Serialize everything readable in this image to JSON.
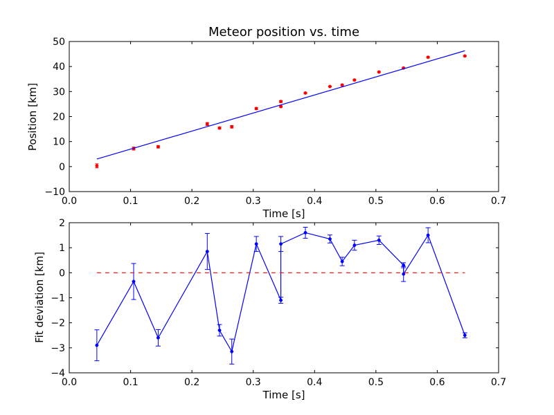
{
  "chart_data": [
    {
      "type": "scatter",
      "title": "Meteor position vs. time",
      "xlabel": "Time [s]",
      "ylabel": "Position [km]",
      "xlim": [
        0.0,
        0.7
      ],
      "ylim": [
        -10,
        50
      ],
      "xticks": [
        "0.0",
        "0.1",
        "0.2",
        "0.3",
        "0.4",
        "0.5",
        "0.6",
        "0.7"
      ],
      "yticks": [
        "−10",
        "0",
        "10",
        "20",
        "30",
        "40",
        "50"
      ],
      "grid": false,
      "series": [
        {
          "kind": "points_with_errorbars",
          "color": "#ff0000",
          "x": [
            0.045,
            0.105,
            0.145,
            0.225,
            0.245,
            0.265,
            0.305,
            0.345,
            0.345,
            0.385,
            0.425,
            0.445,
            0.465,
            0.505,
            0.545,
            0.585,
            0.645
          ],
          "y": [
            0.3,
            7.2,
            7.9,
            17.0,
            15.4,
            15.9,
            23.2,
            24.0,
            26.0,
            29.4,
            32.0,
            32.6,
            34.6,
            37.8,
            39.4,
            43.7,
            44.2
          ],
          "yerr": [
            0.8,
            0.6,
            0.5,
            0.6,
            0.4,
            0.5,
            0.4,
            0.3,
            0.4,
            0.3,
            0.2,
            0.3,
            0.3,
            0.3,
            0.2,
            0.3,
            0.2
          ]
        },
        {
          "kind": "fit_line",
          "color": "#0000ff",
          "x": [
            0.045,
            0.645
          ],
          "y": [
            3.0,
            46.3
          ]
        }
      ]
    },
    {
      "type": "line",
      "title": "",
      "xlabel": "Time [s]",
      "ylabel": "Fit deviation [km]",
      "xlim": [
        0.0,
        0.7
      ],
      "ylim": [
        -4,
        2
      ],
      "xticks": [
        "0.0",
        "0.1",
        "0.2",
        "0.3",
        "0.4",
        "0.5",
        "0.6",
        "0.7"
      ],
      "yticks": [
        "−4",
        "−3",
        "−2",
        "−1",
        "0",
        "1",
        "2"
      ],
      "grid": false,
      "series": [
        {
          "kind": "line_with_errorbars",
          "color": "#0000ff",
          "x": [
            0.045,
            0.105,
            0.145,
            0.225,
            0.245,
            0.265,
            0.305,
            0.345,
            0.345,
            0.385,
            0.425,
            0.445,
            0.465,
            0.505,
            0.545,
            0.545,
            0.585,
            0.645
          ],
          "y": [
            -2.9,
            -0.35,
            -2.6,
            0.85,
            -2.3,
            -3.15,
            1.15,
            -1.1,
            1.15,
            1.6,
            1.35,
            0.45,
            1.1,
            1.3,
            0.3,
            -0.05,
            1.5,
            -2.5
          ],
          "yerr": [
            0.62,
            0.72,
            0.33,
            0.72,
            0.23,
            0.5,
            0.3,
            0.12,
            0.3,
            0.22,
            0.16,
            0.17,
            0.2,
            0.17,
            0.1,
            0.3,
            0.3,
            0.1
          ]
        },
        {
          "kind": "reference_line",
          "color": "#ff0000",
          "style": "dashed",
          "x": [
            0.045,
            0.645
          ],
          "y": [
            0,
            0
          ]
        }
      ]
    }
  ]
}
